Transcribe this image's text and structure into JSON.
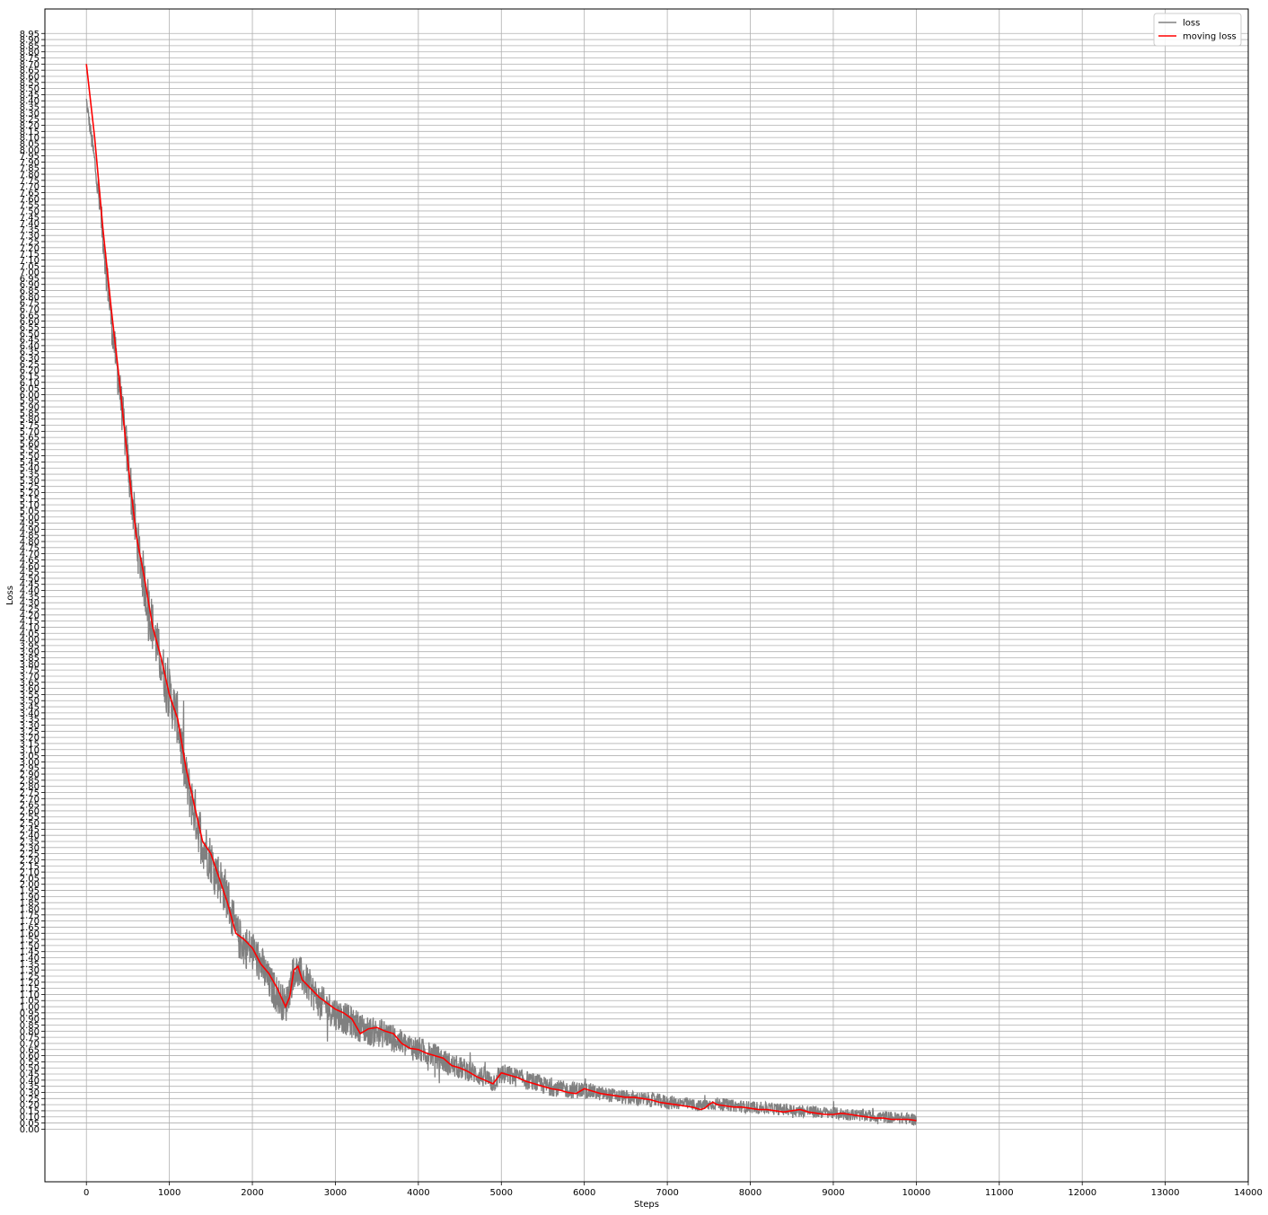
{
  "chart_data": {
    "type": "line",
    "title": "",
    "xlabel": "Steps",
    "ylabel": "Loss",
    "xlim": [
      -500,
      14000
    ],
    "ylim": [
      -0.43,
      9.15
    ],
    "xticks": [
      0,
      1000,
      2000,
      3000,
      4000,
      5000,
      6000,
      7000,
      8000,
      9000,
      10000,
      11000,
      12000,
      13000,
      14000
    ],
    "xtick_labels": [
      "0",
      "1000",
      "2000",
      "3000",
      "4000",
      "5000",
      "6000",
      "7000",
      "8000",
      "9000",
      "10000",
      "11000",
      "12000",
      "13000",
      "14000"
    ],
    "ytick_step": 0.05,
    "ytick_max": 8.95,
    "grid": true,
    "legend": {
      "position": "top-right",
      "entries": [
        "loss",
        "moving loss"
      ]
    },
    "colors": {
      "loss": "#808080",
      "moving_loss": "#ff0000",
      "grid": "#b0b0b0"
    },
    "series": [
      {
        "name": "loss",
        "x": [
          0,
          100,
          200,
          300,
          400,
          500,
          600,
          700,
          800,
          900,
          1000,
          1100,
          1200,
          1300,
          1400,
          1500,
          1600,
          1700,
          1800,
          1900,
          2000,
          2100,
          2200,
          2300,
          2400,
          2500,
          2600,
          2700,
          2800,
          2900,
          3000,
          3200,
          3400,
          3600,
          3800,
          4000,
          4200,
          4400,
          4600,
          4800,
          4900,
          5000,
          5200,
          5400,
          5600,
          5800,
          6000,
          6200,
          6400,
          6600,
          6800,
          7000,
          7200,
          7400,
          7500,
          7600,
          7800,
          8000,
          8200,
          8400,
          8600,
          8800,
          9000,
          9200,
          9400,
          9600,
          9800,
          10000
        ],
        "values": [
          8.4,
          7.9,
          7.3,
          6.6,
          6.05,
          5.45,
          4.85,
          4.45,
          4.1,
          3.8,
          3.55,
          3.35,
          2.85,
          2.6,
          2.35,
          2.2,
          2.05,
          1.9,
          1.6,
          1.5,
          1.45,
          1.35,
          1.2,
          1.1,
          1.0,
          1.3,
          1.25,
          1.15,
          1.05,
          1.0,
          0.95,
          0.87,
          0.8,
          0.78,
          0.7,
          0.65,
          0.6,
          0.52,
          0.48,
          0.42,
          0.38,
          0.45,
          0.42,
          0.38,
          0.34,
          0.32,
          0.32,
          0.29,
          0.27,
          0.25,
          0.24,
          0.22,
          0.21,
          0.19,
          0.2,
          0.21,
          0.19,
          0.18,
          0.17,
          0.16,
          0.15,
          0.14,
          0.13,
          0.12,
          0.11,
          0.1,
          0.09,
          0.08
        ],
        "noise": [
          0.05,
          0.1,
          0.15,
          0.15,
          0.18,
          0.2,
          0.22,
          0.22,
          0.22,
          0.22,
          0.22,
          0.22,
          0.22,
          0.22,
          0.22,
          0.2,
          0.2,
          0.2,
          0.18,
          0.18,
          0.18,
          0.17,
          0.16,
          0.16,
          0.15,
          0.15,
          0.15,
          0.15,
          0.14,
          0.14,
          0.14,
          0.13,
          0.12,
          0.12,
          0.11,
          0.11,
          0.1,
          0.1,
          0.09,
          0.09,
          0.09,
          0.09,
          0.08,
          0.08,
          0.07,
          0.07,
          0.07,
          0.06,
          0.06,
          0.06,
          0.06,
          0.06,
          0.05,
          0.05,
          0.05,
          0.05,
          0.05,
          0.05,
          0.05,
          0.05,
          0.05,
          0.05,
          0.05,
          0.05,
          0.05,
          0.05,
          0.05,
          0.05
        ]
      },
      {
        "name": "moving loss",
        "x": [
          0,
          100,
          200,
          300,
          400,
          500,
          600,
          700,
          800,
          900,
          1000,
          1100,
          1200,
          1300,
          1400,
          1500,
          1600,
          1700,
          1800,
          1900,
          2000,
          2100,
          2200,
          2300,
          2400,
          2450,
          2500,
          2550,
          2600,
          2700,
          2800,
          2900,
          3000,
          3100,
          3200,
          3300,
          3400,
          3500,
          3600,
          3700,
          3800,
          3900,
          4000,
          4100,
          4200,
          4300,
          4400,
          4500,
          4600,
          4700,
          4800,
          4900,
          5000,
          5100,
          5200,
          5300,
          5400,
          5500,
          5600,
          5700,
          5800,
          5900,
          6000,
          6100,
          6200,
          6300,
          6400,
          6500,
          6600,
          6700,
          6800,
          6900,
          7000,
          7100,
          7200,
          7300,
          7400,
          7450,
          7500,
          7550,
          7600,
          7700,
          7800,
          7900,
          8000,
          8100,
          8200,
          8300,
          8400,
          8500,
          8600,
          8700,
          8800,
          8900,
          9000,
          9100,
          9200,
          9300,
          9400,
          9500,
          9600,
          9700,
          9800,
          9900,
          10000
        ],
        "values": [
          8.7,
          8.1,
          7.35,
          6.7,
          6.1,
          5.45,
          4.85,
          4.5,
          4.1,
          3.85,
          3.55,
          3.35,
          2.95,
          2.65,
          2.35,
          2.25,
          2.05,
          1.85,
          1.6,
          1.55,
          1.48,
          1.35,
          1.27,
          1.15,
          1.0,
          1.08,
          1.3,
          1.33,
          1.22,
          1.15,
          1.08,
          1.03,
          0.98,
          0.95,
          0.9,
          0.78,
          0.82,
          0.83,
          0.8,
          0.78,
          0.7,
          0.66,
          0.65,
          0.62,
          0.6,
          0.58,
          0.52,
          0.5,
          0.47,
          0.43,
          0.4,
          0.37,
          0.46,
          0.44,
          0.42,
          0.39,
          0.37,
          0.35,
          0.33,
          0.32,
          0.3,
          0.29,
          0.33,
          0.31,
          0.29,
          0.28,
          0.27,
          0.26,
          0.26,
          0.25,
          0.24,
          0.22,
          0.21,
          0.2,
          0.19,
          0.18,
          0.16,
          0.17,
          0.2,
          0.22,
          0.2,
          0.19,
          0.18,
          0.18,
          0.17,
          0.16,
          0.16,
          0.15,
          0.14,
          0.15,
          0.16,
          0.14,
          0.13,
          0.12,
          0.12,
          0.13,
          0.12,
          0.11,
          0.1,
          0.09,
          0.09,
          0.08,
          0.08,
          0.08,
          0.07
        ]
      }
    ]
  }
}
